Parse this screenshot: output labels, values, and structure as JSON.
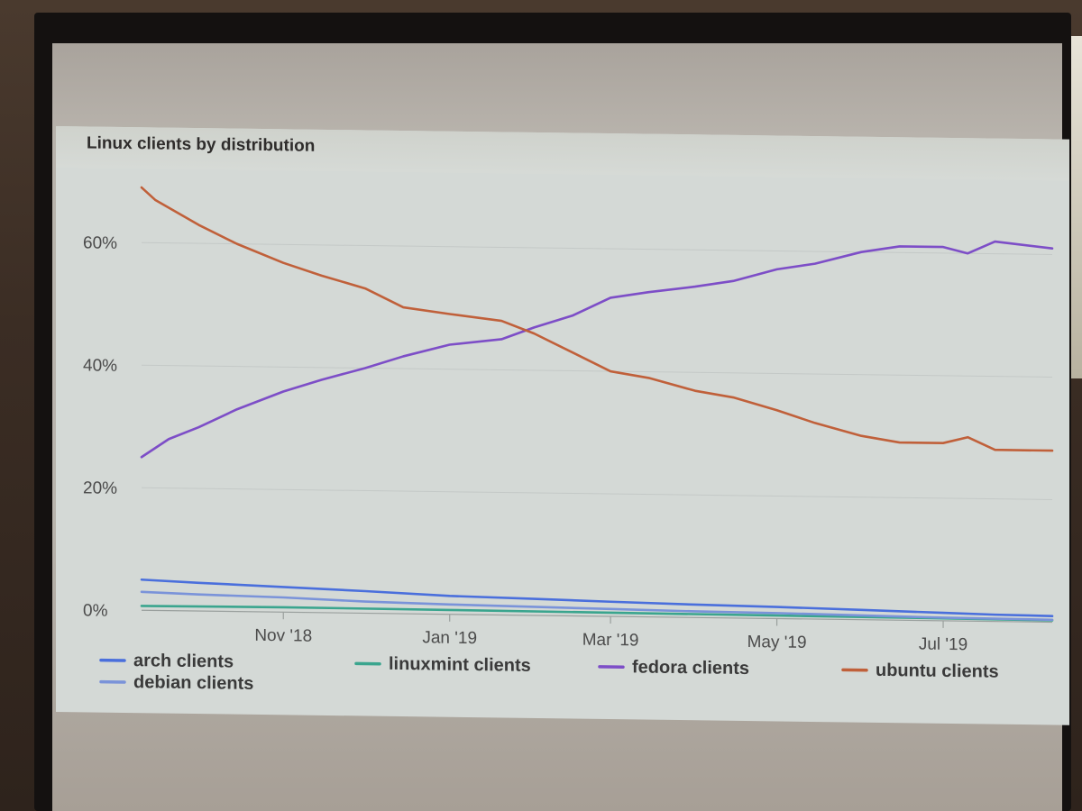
{
  "chart_data": {
    "type": "line",
    "title": "Linux clients by distribution",
    "xlabel": "",
    "ylabel": "",
    "x_tick_labels": [
      "Nov '18",
      "Jan '19",
      "Mar '19",
      "May '19",
      "Jul '19"
    ],
    "y_tick_labels": [
      "0%",
      "20%",
      "40%",
      "60%"
    ],
    "ylim": [
      0,
      70
    ],
    "xlim": [
      "2018-09-10",
      "2019-08-10"
    ],
    "grid": true,
    "legend_position": "bottom",
    "series": [
      {
        "name": "arch clients",
        "color": "#4a6fdc",
        "points": [
          [
            "2018-09-10",
            5.0
          ],
          [
            "2018-10-01",
            4.6
          ],
          [
            "2018-11-01",
            4.1
          ],
          [
            "2018-12-01",
            3.6
          ],
          [
            "2019-01-01",
            3.0
          ],
          [
            "2019-02-01",
            2.7
          ],
          [
            "2019-03-01",
            2.4
          ],
          [
            "2019-04-01",
            2.1
          ],
          [
            "2019-05-01",
            1.9
          ],
          [
            "2019-06-01",
            1.6
          ],
          [
            "2019-07-01",
            1.3
          ],
          [
            "2019-07-20",
            1.1
          ],
          [
            "2019-08-10",
            1.0
          ]
        ]
      },
      {
        "name": "linuxmint clients",
        "color": "#3aa58e",
        "points": [
          [
            "2018-09-10",
            0.7
          ],
          [
            "2018-11-01",
            0.8
          ],
          [
            "2019-01-01",
            0.7
          ],
          [
            "2019-03-01",
            0.6
          ],
          [
            "2019-05-01",
            0.5
          ],
          [
            "2019-07-01",
            0.4
          ],
          [
            "2019-08-10",
            0.3
          ]
        ]
      },
      {
        "name": "fedora clients",
        "color": "#7d4ec7",
        "points": [
          [
            "2018-09-10",
            25
          ],
          [
            "2018-09-20",
            28
          ],
          [
            "2018-10-01",
            30
          ],
          [
            "2018-10-15",
            33
          ],
          [
            "2018-11-01",
            36
          ],
          [
            "2018-11-15",
            38
          ],
          [
            "2018-12-01",
            40
          ],
          [
            "2018-12-15",
            42
          ],
          [
            "2019-01-01",
            44
          ],
          [
            "2019-01-20",
            45
          ],
          [
            "2019-02-01",
            47
          ],
          [
            "2019-02-15",
            49
          ],
          [
            "2019-03-01",
            52
          ],
          [
            "2019-03-15",
            53
          ],
          [
            "2019-04-01",
            54
          ],
          [
            "2019-04-15",
            55
          ],
          [
            "2019-05-01",
            57
          ],
          [
            "2019-05-15",
            58
          ],
          [
            "2019-06-01",
            60
          ],
          [
            "2019-06-15",
            61
          ],
          [
            "2019-07-01",
            61
          ],
          [
            "2019-07-10",
            60
          ],
          [
            "2019-07-20",
            62
          ],
          [
            "2019-08-10",
            61
          ]
        ]
      },
      {
        "name": "ubuntu clients",
        "color": "#c0603a",
        "points": [
          [
            "2018-09-10",
            69
          ],
          [
            "2018-09-15",
            67
          ],
          [
            "2018-10-01",
            63
          ],
          [
            "2018-10-15",
            60
          ],
          [
            "2018-11-01",
            57
          ],
          [
            "2018-11-15",
            55
          ],
          [
            "2018-12-01",
            53
          ],
          [
            "2018-12-15",
            50
          ],
          [
            "2019-01-01",
            49
          ],
          [
            "2019-01-20",
            48
          ],
          [
            "2019-02-01",
            46
          ],
          [
            "2019-02-15",
            43
          ],
          [
            "2019-03-01",
            40
          ],
          [
            "2019-03-15",
            39
          ],
          [
            "2019-04-01",
            37
          ],
          [
            "2019-04-15",
            36
          ],
          [
            "2019-05-01",
            34
          ],
          [
            "2019-05-15",
            32
          ],
          [
            "2019-06-01",
            30
          ],
          [
            "2019-06-15",
            29
          ],
          [
            "2019-07-01",
            29
          ],
          [
            "2019-07-10",
            30
          ],
          [
            "2019-07-20",
            28
          ],
          [
            "2019-08-10",
            28
          ]
        ]
      },
      {
        "name": "debian clients",
        "color": "#7a93d9",
        "points": [
          [
            "2018-09-10",
            3.0
          ],
          [
            "2018-10-01",
            2.7
          ],
          [
            "2018-11-01",
            2.4
          ],
          [
            "2018-12-01",
            1.9
          ],
          [
            "2019-01-01",
            1.6
          ],
          [
            "2019-02-01",
            1.4
          ],
          [
            "2019-03-01",
            1.2
          ],
          [
            "2019-04-01",
            1.0
          ],
          [
            "2019-05-01",
            0.9
          ],
          [
            "2019-06-01",
            0.7
          ],
          [
            "2019-07-01",
            0.5
          ],
          [
            "2019-08-10",
            0.4
          ]
        ]
      }
    ]
  }
}
